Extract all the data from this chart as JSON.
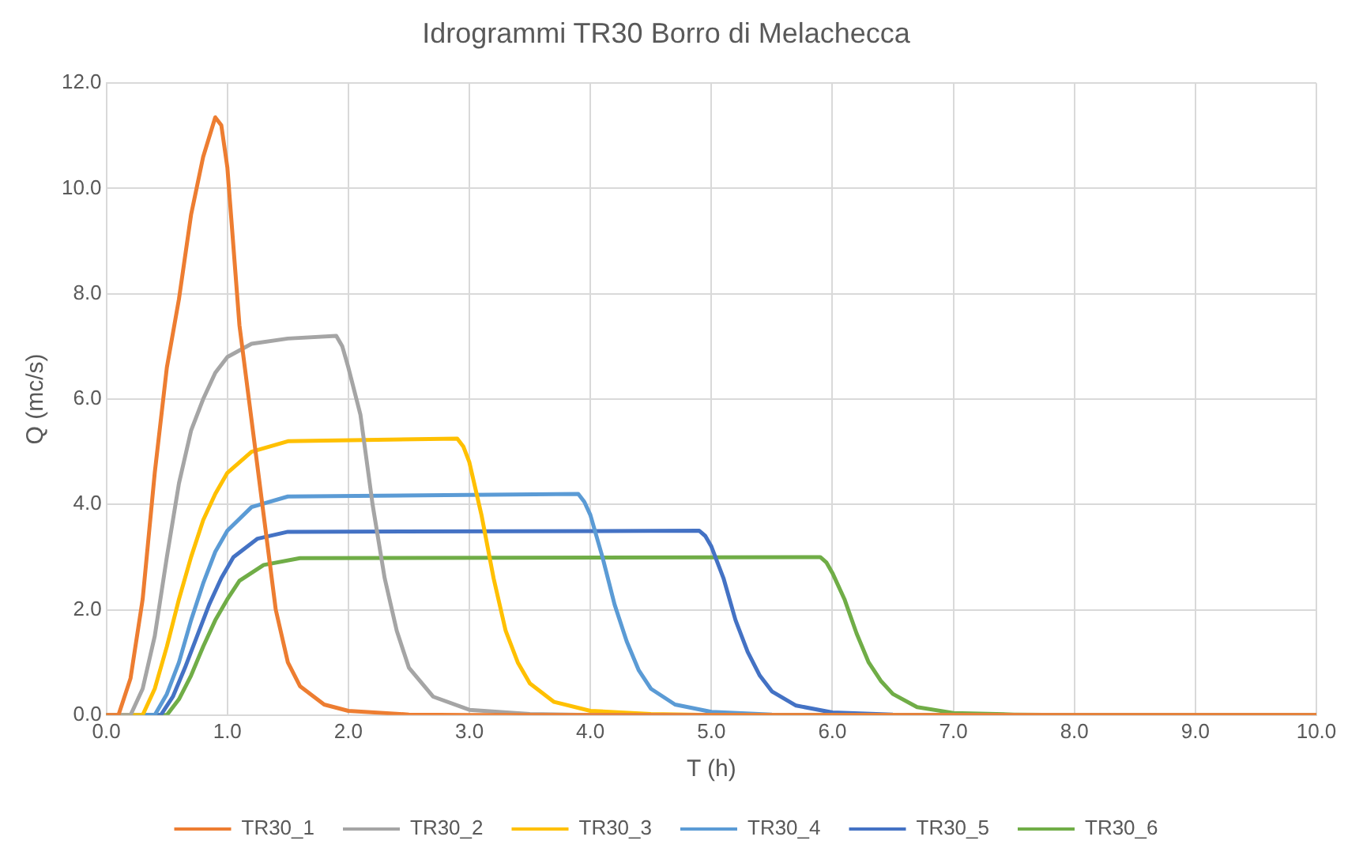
{
  "chart_data": {
    "type": "line",
    "title": "Idrogrammi TR30 Borro di Melachecca",
    "xlabel": "T (h)",
    "ylabel": "Q (mc/s)",
    "xlim": [
      0,
      10
    ],
    "xticks": [
      {
        "value": 0,
        "label": "0.0"
      },
      {
        "value": 1,
        "label": "1.0"
      },
      {
        "value": 2,
        "label": "2.0"
      },
      {
        "value": 3,
        "label": "3.0"
      },
      {
        "value": 4,
        "label": "4.0"
      },
      {
        "value": 5,
        "label": "5.0"
      },
      {
        "value": 6,
        "label": "6.0"
      },
      {
        "value": 7,
        "label": "7.0"
      },
      {
        "value": 8,
        "label": "8.0"
      },
      {
        "value": 9,
        "label": "9.0"
      },
      {
        "value": 10,
        "label": "10.0"
      }
    ],
    "ylim": [
      0,
      12
    ],
    "yticks": [
      {
        "value": 0,
        "label": "0.0"
      },
      {
        "value": 2,
        "label": "2.0"
      },
      {
        "value": 4,
        "label": "4.0"
      },
      {
        "value": 6,
        "label": "6.0"
      },
      {
        "value": 8,
        "label": "8.0"
      },
      {
        "value": 10,
        "label": "10.0"
      },
      {
        "value": 12,
        "label": "12.0"
      }
    ],
    "grid": true,
    "legend": "bottom",
    "marker": "none",
    "line_style": "solid",
    "series": [
      {
        "name": "TR30_1",
        "color": "#ed7d31",
        "x": [
          0,
          0.1,
          0.2,
          0.3,
          0.4,
          0.5,
          0.6,
          0.7,
          0.8,
          0.9,
          0.95,
          1.0,
          1.1,
          1.2,
          1.3,
          1.4,
          1.5,
          1.6,
          1.8,
          2.0,
          2.5,
          3,
          10
        ],
        "values": [
          0,
          0,
          0.7,
          2.2,
          4.6,
          6.6,
          7.9,
          9.5,
          10.6,
          11.35,
          11.2,
          10.4,
          7.4,
          5.6,
          3.8,
          2.0,
          1.0,
          0.55,
          0.2,
          0.08,
          0.01,
          0,
          0
        ]
      },
      {
        "name": "TR30_2",
        "color": "#a5a5a5",
        "x": [
          0,
          0.2,
          0.3,
          0.4,
          0.5,
          0.6,
          0.7,
          0.8,
          0.9,
          1.0,
          1.2,
          1.5,
          1.9,
          1.95,
          2.0,
          2.1,
          2.2,
          2.3,
          2.4,
          2.5,
          2.7,
          3.0,
          3.5,
          4,
          10
        ],
        "values": [
          0,
          0,
          0.5,
          1.5,
          3.0,
          4.4,
          5.4,
          6.0,
          6.5,
          6.8,
          7.05,
          7.15,
          7.2,
          7.0,
          6.6,
          5.7,
          4.0,
          2.6,
          1.6,
          0.9,
          0.35,
          0.1,
          0.02,
          0,
          0
        ]
      },
      {
        "name": "TR30_3",
        "color": "#ffc000",
        "x": [
          0,
          0.3,
          0.4,
          0.5,
          0.6,
          0.7,
          0.8,
          0.9,
          1.0,
          1.2,
          1.5,
          2.9,
          2.95,
          3.0,
          3.1,
          3.2,
          3.3,
          3.4,
          3.5,
          3.7,
          4.0,
          4.5,
          5,
          10
        ],
        "values": [
          0,
          0,
          0.5,
          1.3,
          2.2,
          3.0,
          3.7,
          4.2,
          4.6,
          5.0,
          5.2,
          5.25,
          5.1,
          4.8,
          3.8,
          2.6,
          1.6,
          1.0,
          0.6,
          0.25,
          0.08,
          0.02,
          0,
          0
        ]
      },
      {
        "name": "TR30_4",
        "color": "#5b9bd5",
        "x": [
          0,
          0.4,
          0.5,
          0.6,
          0.7,
          0.8,
          0.9,
          1.0,
          1.2,
          1.5,
          3.9,
          3.95,
          4.0,
          4.1,
          4.2,
          4.3,
          4.4,
          4.5,
          4.7,
          5.0,
          5.5,
          6,
          10
        ],
        "values": [
          0,
          0,
          0.4,
          1.0,
          1.8,
          2.5,
          3.1,
          3.5,
          3.95,
          4.15,
          4.2,
          4.05,
          3.8,
          3.0,
          2.1,
          1.4,
          0.85,
          0.5,
          0.2,
          0.06,
          0.01,
          0,
          0
        ]
      },
      {
        "name": "TR30_5",
        "color": "#4472c4",
        "x": [
          0,
          0.45,
          0.55,
          0.65,
          0.75,
          0.85,
          0.95,
          1.05,
          1.25,
          1.5,
          4.9,
          4.95,
          5.0,
          5.1,
          5.2,
          5.3,
          5.4,
          5.5,
          5.7,
          6.0,
          6.5,
          7,
          10
        ],
        "values": [
          0,
          0,
          0.35,
          0.9,
          1.5,
          2.1,
          2.6,
          3.0,
          3.35,
          3.48,
          3.5,
          3.4,
          3.2,
          2.6,
          1.8,
          1.2,
          0.75,
          0.45,
          0.18,
          0.05,
          0.01,
          0,
          0
        ]
      },
      {
        "name": "TR30_6",
        "color": "#70ad47",
        "x": [
          0,
          0.5,
          0.6,
          0.7,
          0.8,
          0.9,
          1.0,
          1.1,
          1.3,
          1.6,
          5.9,
          5.95,
          6.0,
          6.1,
          6.2,
          6.3,
          6.4,
          6.5,
          6.7,
          7.0,
          7.5,
          8,
          10
        ],
        "values": [
          0,
          0,
          0.3,
          0.75,
          1.3,
          1.8,
          2.2,
          2.55,
          2.85,
          2.98,
          3.0,
          2.9,
          2.7,
          2.2,
          1.55,
          1.0,
          0.65,
          0.4,
          0.15,
          0.04,
          0.01,
          0,
          0
        ]
      }
    ]
  }
}
